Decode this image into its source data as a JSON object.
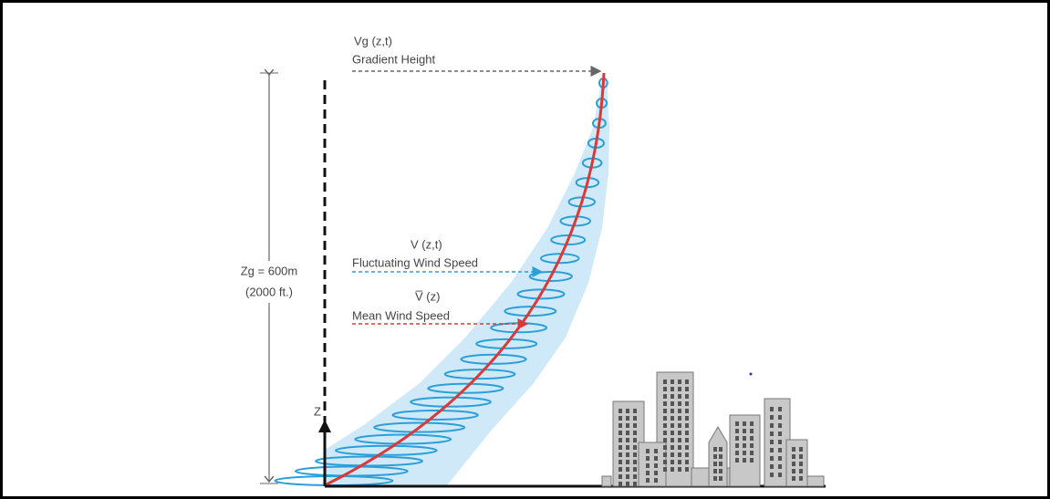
{
  "gradient": {
    "symbol": "Vg (z,t)",
    "name": "Gradient Height"
  },
  "fluctuating": {
    "symbol": "V (z,t)",
    "name": "Fluctuating Wind Speed"
  },
  "mean": {
    "symbol": "V̅ (z)",
    "name": "Mean Wind Speed"
  },
  "height": {
    "metric": "Zg = 600m",
    "imperial": "(2000 ft.)"
  },
  "axis": "Z"
}
